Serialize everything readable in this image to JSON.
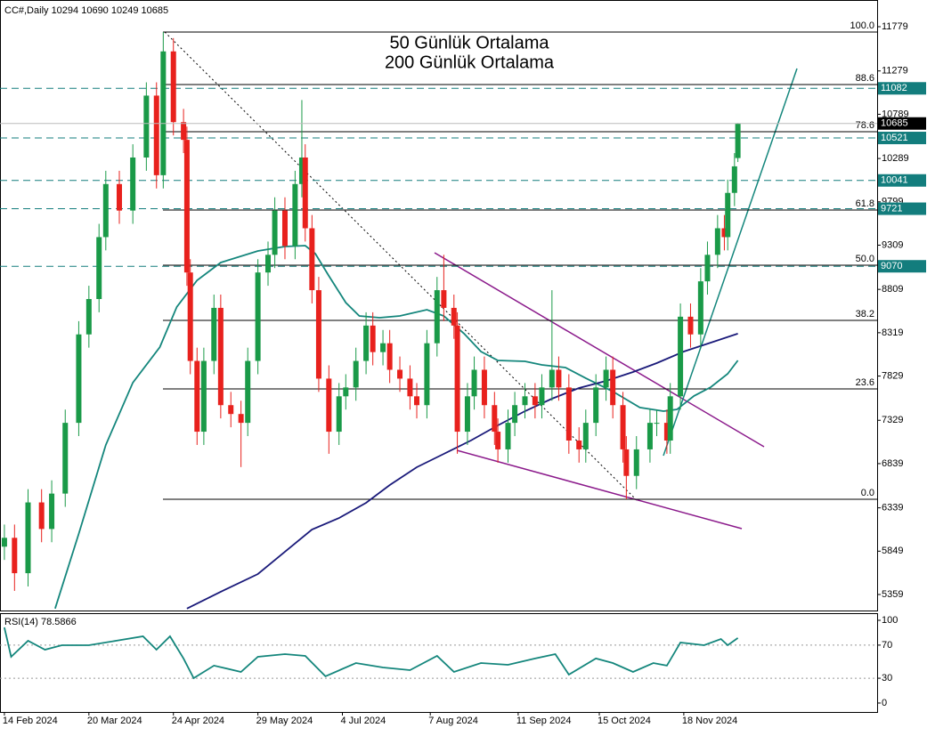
{
  "chart_data": [
    {
      "type": "candlestick",
      "title": "CC#,Daily  10294 10690 10249 10685",
      "up_color": "#1a9a48",
      "down_color": "#e8211d",
      "x": [
        0,
        3,
        7,
        11,
        14,
        18,
        22,
        25,
        28,
        30,
        34,
        38,
        42,
        45,
        47,
        50,
        53,
        54,
        55,
        57,
        59,
        62,
        64,
        67,
        70,
        72,
        75,
        78,
        80,
        83,
        86,
        88,
        89,
        91,
        93,
        96,
        99,
        101,
        104,
        107,
        109,
        112,
        114,
        117,
        120,
        122,
        125,
        128,
        130,
        133,
        134,
        137,
        139,
        142,
        145,
        146,
        149,
        151,
        154,
        157,
        159,
        162,
        164,
        167,
        170,
        172,
        175,
        178,
        180,
        183,
        184,
        187,
        191,
        193,
        196,
        197,
        200,
        203,
        206,
        208,
        211,
        213,
        214,
        216,
        217
      ],
      "open": [
        5900,
        6000,
        5600,
        6400,
        6100,
        6500,
        7300,
        8300,
        8700,
        9400,
        10000,
        9700,
        10300,
        11000,
        10100,
        11500,
        10700,
        10500,
        9000,
        8000,
        7200,
        8000,
        8600,
        7500,
        7400,
        7300,
        8000,
        9000,
        9200,
        9700,
        9300,
        10000,
        10300,
        9500,
        8800,
        7800,
        7200,
        7600,
        7700,
        8000,
        8400,
        8100,
        8200,
        7900,
        7800,
        7600,
        7500,
        8200,
        8800,
        8600,
        8400,
        7200,
        7600,
        7900,
        7500,
        7200,
        7000,
        7300,
        7500,
        7600,
        7500,
        7700,
        7900,
        7700,
        7100,
        7000,
        7300,
        7700,
        7900,
        7500,
        7000,
        6700,
        7000,
        7300,
        7300,
        7100,
        7600,
        8500,
        8300,
        8900,
        9200,
        9500,
        9400,
        9900,
        10294
      ],
      "high": [
        6150,
        6150,
        6550,
        6550,
        6650,
        7450,
        8450,
        8850,
        9550,
        10150,
        10150,
        10450,
        11150,
        11150,
        11720,
        11650,
        10850,
        10650,
        9150,
        8150,
        8150,
        8750,
        8750,
        7650,
        7550,
        8150,
        9150,
        9350,
        9850,
        9850,
        10150,
        10950,
        10450,
        9650,
        8950,
        7950,
        7750,
        7850,
        8150,
        8550,
        8550,
        8350,
        8350,
        8050,
        7950,
        7750,
        8350,
        8950,
        9200,
        8750,
        8550,
        7750,
        8050,
        8050,
        7650,
        7350,
        7450,
        7650,
        7750,
        7750,
        7850,
        8800,
        8050,
        7850,
        7250,
        7450,
        7850,
        8050,
        8050,
        7650,
        7150,
        7150,
        7450,
        7450,
        7450,
        7750,
        8650,
        8650,
        9050,
        9350,
        9650,
        9650,
        10050,
        10350,
        10690
      ],
      "low": [
        5750,
        5400,
        5450,
        5950,
        5950,
        6350,
        7150,
        8150,
        8550,
        9250,
        9550,
        9550,
        10150,
        9950,
        9950,
        10550,
        10350,
        8850,
        7850,
        7050,
        7050,
        7850,
        7350,
        7250,
        6800,
        7150,
        7850,
        8850,
        9050,
        9150,
        9150,
        9850,
        9350,
        8650,
        7650,
        6950,
        7050,
        7450,
        7550,
        7850,
        7950,
        7950,
        7750,
        7650,
        7450,
        7350,
        7350,
        8050,
        8450,
        8250,
        6950,
        7050,
        7450,
        7350,
        7050,
        6850,
        6850,
        7150,
        7350,
        7350,
        7350,
        7550,
        7550,
        6950,
        6850,
        6850,
        7150,
        7550,
        7350,
        6850,
        6436,
        6550,
        6850,
        7150,
        6950,
        6950,
        7450,
        8150,
        8150,
        8750,
        9050,
        9250,
        9250,
        9750,
        10249
      ],
      "close": [
        6000,
        5600,
        6400,
        6100,
        6500,
        7300,
        8300,
        8700,
        9400,
        10000,
        9700,
        10300,
        11000,
        10100,
        11500,
        10700,
        10500,
        9000,
        8000,
        7200,
        8000,
        8600,
        7500,
        7400,
        7300,
        8000,
        9000,
        9200,
        9700,
        9300,
        10000,
        10300,
        9500,
        8800,
        7800,
        7200,
        7600,
        7700,
        8000,
        8400,
        8100,
        8200,
        7900,
        7800,
        7600,
        7500,
        8200,
        8800,
        8600,
        8400,
        7200,
        7600,
        7900,
        7500,
        7200,
        7000,
        7300,
        7500,
        7600,
        7500,
        7700,
        7900,
        7700,
        7100,
        7000,
        7300,
        7700,
        7900,
        7500,
        7000,
        6700,
        7000,
        7300,
        7300,
        7100,
        7600,
        8500,
        8300,
        8900,
        9200,
        9500,
        9400,
        9900,
        10200,
        10685
      ],
      "series": [
        {
          "name": "50 Günlük Ortalama",
          "color": "#14867c",
          "x": [
            15,
            22,
            30,
            38,
            46,
            51,
            57,
            64,
            75,
            83,
            89,
            92,
            96,
            101,
            105,
            111,
            117,
            125,
            130,
            136,
            141,
            146,
            154,
            159,
            166,
            172,
            180,
            188,
            195,
            199,
            204,
            209,
            214,
            217
          ],
          "values": [
            5200,
            6044,
            7050,
            7755,
            8157,
            8610,
            8911,
            9113,
            9243,
            9294,
            9304,
            9213,
            8962,
            8660,
            8509,
            8489,
            8509,
            8579,
            8509,
            8308,
            8106,
            8006,
            7996,
            7955,
            7925,
            7805,
            7654,
            7473,
            7432,
            7452,
            7604,
            7704,
            7855,
            8006
          ]
        },
        {
          "name": "200 Günlük Ortalama",
          "color": "#1a1a7a",
          "x": [
            54,
            64,
            75,
            83,
            91,
            99,
            107,
            114,
            122,
            130,
            138,
            146,
            154,
            162,
            170,
            178,
            186,
            193,
            201,
            209,
            217
          ],
          "values": [
            5200,
            5390,
            5591,
            5843,
            6094,
            6224,
            6396,
            6597,
            6798,
            6949,
            7100,
            7271,
            7432,
            7573,
            7694,
            7774,
            7875,
            7975,
            8106,
            8207,
            8308
          ]
        }
      ],
      "xlim": [
        -1.3,
        258.2
      ],
      "ylim": [
        5178,
        12081
      ],
      "yticks": [
        5359,
        5849,
        6339,
        6839,
        7329,
        7829,
        8319,
        8809,
        9309,
        9799,
        10289,
        10789,
        11279,
        11779
      ],
      "fib_levels": [
        {
          "value": 11719,
          "label": "100.0"
        },
        {
          "value": 11125,
          "label": "88.6"
        },
        {
          "value": 10592,
          "label": "78.6"
        },
        {
          "value": 9706,
          "label": "61.8"
        },
        {
          "value": 9082,
          "label": "50.0"
        },
        {
          "value": 8458,
          "label": "38.2"
        },
        {
          "value": 7684,
          "label": "23.6"
        },
        {
          "value": 6436,
          "label": "0.0"
        }
      ],
      "levels": [
        11082,
        10521,
        10041,
        9721,
        9070
      ],
      "level_color": "#137d7d"
    },
    {
      "type": "line",
      "title": "RSI(14) 78.5866",
      "series": [
        {
          "color": "#14867c",
          "x": [
            0,
            2,
            7,
            12,
            17,
            25,
            33,
            41,
            45,
            49,
            53,
            56,
            62,
            70,
            75,
            83,
            89,
            95,
            104,
            112,
            120,
            128,
            133,
            141,
            149,
            157,
            163,
            167,
            175,
            180,
            186,
            192,
            196,
            200,
            207,
            212,
            214,
            217
          ],
          "values": [
            91.4,
            55.9,
            75.3,
            64.5,
            69.9,
            69.9,
            75.3,
            80.6,
            64.5,
            80.6,
            53.8,
            30.1,
            45.2,
            37.6,
            55.9,
            59.1,
            57.0,
            32.3,
            48.4,
            43.0,
            39.8,
            57.0,
            37.6,
            48.4,
            46.2,
            53.8,
            59.1,
            34.4,
            53.8,
            48.4,
            37.6,
            48.4,
            45.2,
            73.1,
            69.9,
            77.4,
            69.9,
            78.5866
          ]
        }
      ],
      "xlim": [
        -1.3,
        258.2
      ],
      "ylim": [
        -10.8,
        108.6
      ],
      "yticks": [
        100,
        70,
        30,
        0
      ],
      "reference_lines": [
        70,
        30
      ],
      "xticks": [
        {
          "value": 0,
          "label": "14 Feb 2024"
        },
        {
          "value": 25,
          "label": "20 Mar 2024"
        },
        {
          "value": 50,
          "label": "24 Apr 2024"
        },
        {
          "value": 75,
          "label": "29 May 2024"
        },
        {
          "value": 100,
          "label": "4 Jul 2024"
        },
        {
          "value": 126,
          "label": "7 Aug 2024"
        },
        {
          "value": 152,
          "label": "11 Sep 2024"
        },
        {
          "value": 176,
          "label": "15 Oct 2024"
        },
        {
          "value": 201,
          "label": "18 Nov 2024"
        }
      ]
    }
  ]
}
